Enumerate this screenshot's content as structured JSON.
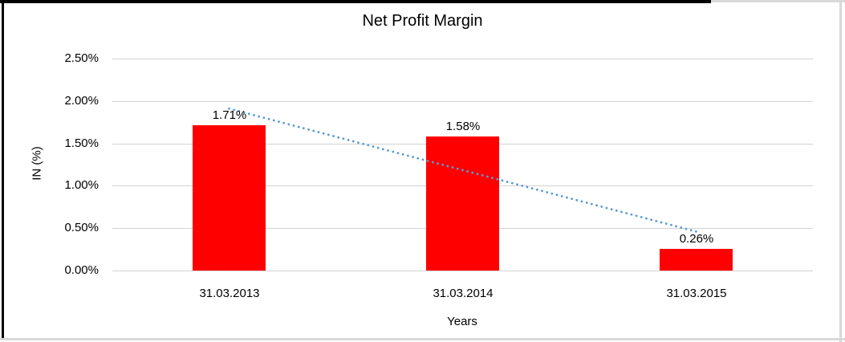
{
  "window": {
    "background": "#ffffff",
    "frame": {
      "top_left_border_color": "#000000",
      "bottom_right_border_color": "#d9d9d9"
    }
  },
  "chart_data": {
    "type": "bar",
    "title": "Net Profit Margin",
    "xlabel": "Years",
    "ylabel": "IN (%)",
    "categories": [
      "31.03.2013",
      "31.03.2014",
      "31.03.2015"
    ],
    "series": [
      {
        "name": "Net Profit Margin",
        "values": [
          1.71,
          1.58,
          0.26
        ]
      }
    ],
    "data_labels": [
      "1.71%",
      "1.58%",
      "0.26%"
    ],
    "unit": "%",
    "ylim": [
      0,
      2.5
    ],
    "ytick_step": 0.5,
    "ytick_labels": [
      "0.00%",
      "0.50%",
      "1.00%",
      "1.50%",
      "2.00%",
      "2.50%"
    ],
    "grid": true,
    "legend": "none",
    "bar_color": "#ff0000",
    "gridline_color": "#d3d3d3",
    "text_color": "#000000",
    "trendline": {
      "type": "linear",
      "style": "dotted",
      "color": "#5b9bd5",
      "y_at_first_category": 1.91,
      "y_at_last_category": 0.46
    }
  }
}
